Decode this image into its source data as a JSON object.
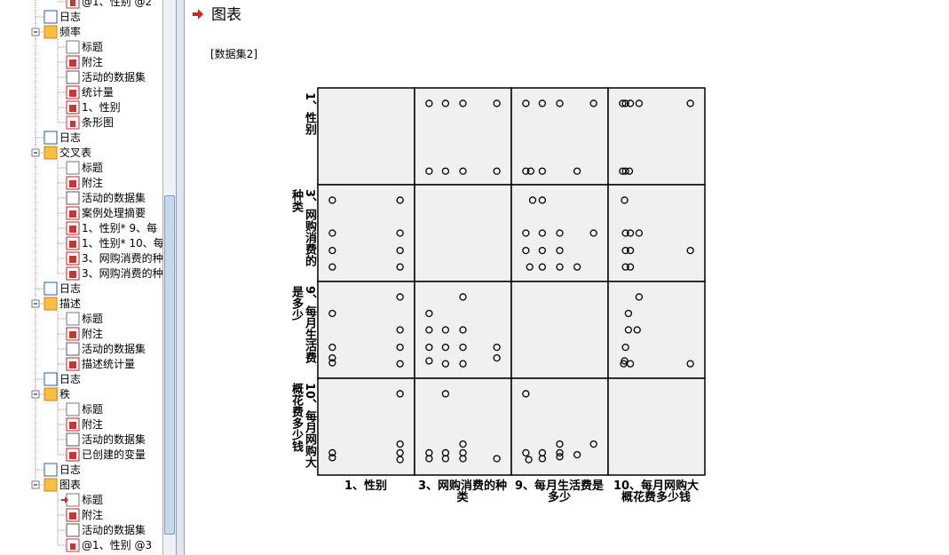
{
  "navigator": {
    "items": [
      "@1、性别 @2",
      "日志",
      "频率",
      "标题",
      "附注",
      "活动的数据集",
      "统计量",
      "1、性别",
      "条形图",
      "日志",
      "交叉表",
      "标题",
      "附注",
      "活动的数据集",
      "案例处理摘要",
      "1、性别* 9、每",
      "1、性别* 10、每",
      "3、网购消费的种",
      "3、网购消费的种",
      "日志",
      "描述",
      "标题",
      "附注",
      "活动的数据集",
      "描述统计量",
      "日志",
      "秩",
      "标题",
      "附注",
      "活动的数据集",
      "已创建的变量",
      "日志",
      "图表",
      "标题",
      "附注",
      "活动的数据集",
      "@1、性别 @3"
    ]
  },
  "output": {
    "heading": "图表",
    "dataset": "[数据集2]"
  },
  "chart_data": {
    "type": "scatter-matrix",
    "variables": [
      "1、性别",
      "3、网购消费的种类",
      "9、每月生活费是多少",
      "10、每月网购大概花费多少钱"
    ],
    "xlim": [
      0,
      100
    ],
    "ylim": [
      0,
      100
    ],
    "points": [
      [
        [],
        [
          [
            15,
            84
          ],
          [
            32,
            84
          ],
          [
            50,
            84
          ],
          [
            85,
            84
          ],
          [
            15,
            14
          ],
          [
            32,
            14
          ],
          [
            50,
            14
          ],
          [
            85,
            14
          ]
        ],
        [
          [
            15,
            84
          ],
          [
            32,
            84
          ],
          [
            50,
            84
          ],
          [
            85,
            84
          ],
          [
            15,
            14
          ],
          [
            20,
            14
          ],
          [
            32,
            14
          ],
          [
            68,
            14
          ]
        ],
        [
          [
            15,
            84
          ],
          [
            18,
            84
          ],
          [
            23,
            84
          ],
          [
            32,
            84
          ],
          [
            85,
            84
          ],
          [
            15,
            14
          ],
          [
            18,
            14
          ],
          [
            22,
            14
          ]
        ]
      ],
      [
        [
          [
            15,
            84
          ],
          [
            85,
            84
          ],
          [
            15,
            50
          ],
          [
            85,
            50
          ],
          [
            15,
            32
          ],
          [
            85,
            32
          ],
          [
            15,
            15
          ],
          [
            85,
            15
          ]
        ],
        [],
        [
          [
            22,
            84
          ],
          [
            32,
            84
          ],
          [
            15,
            50
          ],
          [
            32,
            50
          ],
          [
            50,
            50
          ],
          [
            85,
            50
          ],
          [
            15,
            32
          ],
          [
            32,
            32
          ],
          [
            50,
            32
          ],
          [
            19,
            15
          ],
          [
            32,
            15
          ],
          [
            50,
            15
          ],
          [
            68,
            15
          ]
        ],
        [
          [
            17,
            84
          ],
          [
            18,
            50
          ],
          [
            23,
            50
          ],
          [
            32,
            50
          ],
          [
            18,
            32
          ],
          [
            23,
            32
          ],
          [
            85,
            32
          ],
          [
            18,
            15
          ],
          [
            23,
            15
          ]
        ]
      ],
      [
        [
          [
            15,
            67
          ],
          [
            85,
            84
          ],
          [
            85,
            50
          ],
          [
            15,
            32
          ],
          [
            85,
            32
          ],
          [
            15,
            21
          ],
          [
            15,
            16
          ],
          [
            85,
            15
          ]
        ],
        [
          [
            50,
            84
          ],
          [
            15,
            67
          ],
          [
            15,
            50
          ],
          [
            32,
            50
          ],
          [
            50,
            50
          ],
          [
            15,
            32
          ],
          [
            32,
            32
          ],
          [
            50,
            32
          ],
          [
            85,
            32
          ],
          [
            15,
            18
          ],
          [
            32,
            15
          ],
          [
            50,
            15
          ],
          [
            85,
            21
          ]
        ],
        [],
        [
          [
            32,
            84
          ],
          [
            21,
            67
          ],
          [
            21,
            50
          ],
          [
            30,
            50
          ],
          [
            18,
            32
          ],
          [
            17,
            18
          ],
          [
            16,
            15
          ],
          [
            23,
            15
          ],
          [
            85,
            15
          ]
        ]
      ],
      [
        [
          [
            85,
            84
          ],
          [
            15,
            23
          ],
          [
            85,
            32
          ],
          [
            85,
            23
          ],
          [
            15,
            18
          ],
          [
            85,
            16
          ]
        ],
        [
          [
            32,
            84
          ],
          [
            15,
            23
          ],
          [
            32,
            23
          ],
          [
            50,
            32
          ],
          [
            50,
            23
          ],
          [
            15,
            17
          ],
          [
            32,
            17
          ],
          [
            50,
            17
          ],
          [
            85,
            17
          ]
        ],
        [
          [
            15,
            84
          ],
          [
            15,
            23
          ],
          [
            32,
            23
          ],
          [
            50,
            32
          ],
          [
            50,
            23
          ],
          [
            85,
            32
          ],
          [
            68,
            21
          ],
          [
            18,
            16
          ],
          [
            32,
            17
          ],
          [
            50,
            19
          ]
        ],
        []
      ]
    ]
  }
}
